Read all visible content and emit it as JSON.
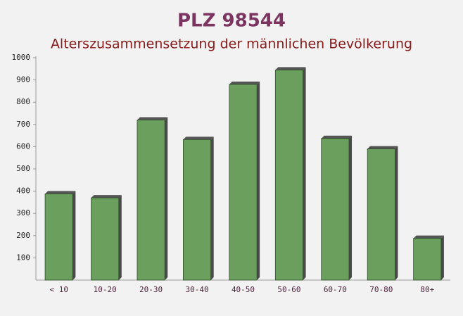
{
  "chart_data": {
    "type": "bar",
    "title": "PLZ 98544",
    "subtitle": "Alterszusammensetzung der männlichen Bevölkerung",
    "categories": [
      "< 10",
      "10-20",
      "20-30",
      "30-40",
      "40-50",
      "50-60",
      "60-70",
      "70-80",
      "80+"
    ],
    "values": [
      388,
      370,
      720,
      632,
      880,
      945,
      637,
      590,
      188
    ],
    "color": "#6a9f5e",
    "ylim": [
      0,
      1000
    ],
    "yticks": [
      100,
      200,
      300,
      400,
      500,
      600,
      700,
      800,
      900,
      1000
    ],
    "grid": false
  }
}
